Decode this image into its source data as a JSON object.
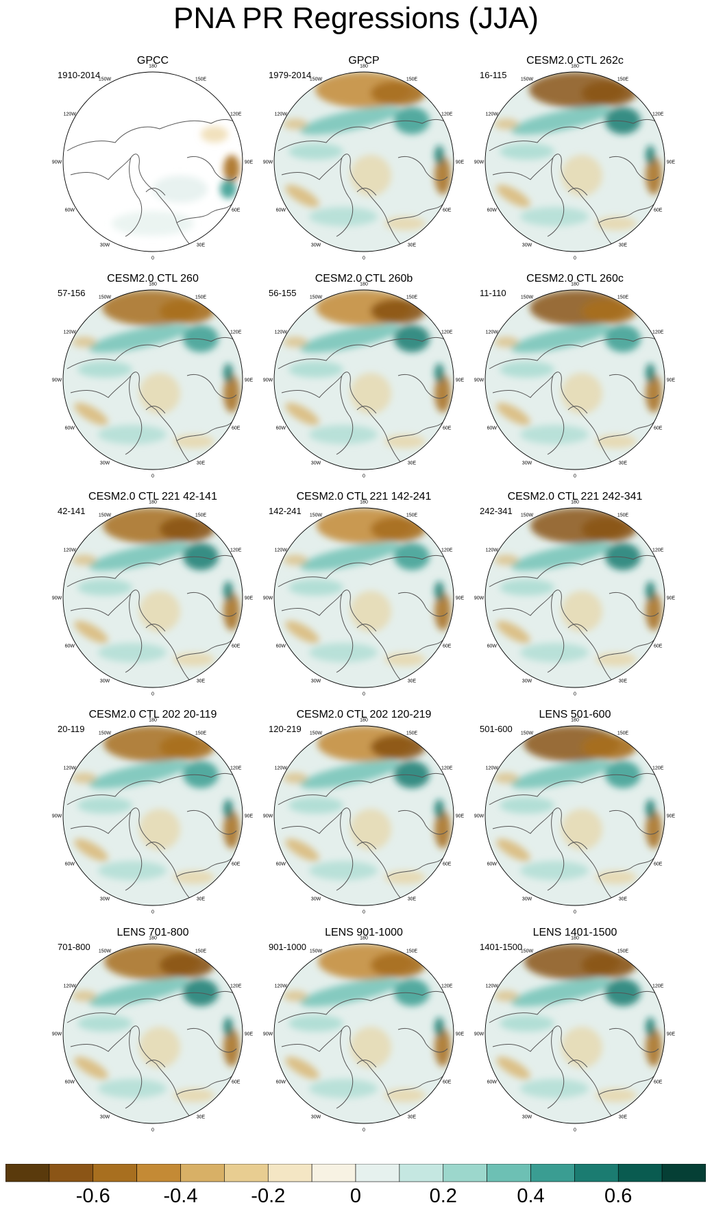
{
  "title": "PNA PR Regressions (JJA)",
  "panels": [
    {
      "title": "GPCC",
      "period": "1910-2014",
      "missing": true
    },
    {
      "title": "GPCP",
      "period": "1979-2014"
    },
    {
      "title": "CESM2.0 CTL 262c",
      "period": "16-115"
    },
    {
      "title": "CESM2.0 CTL 260",
      "period": "57-156"
    },
    {
      "title": "CESM2.0 CTL 260b",
      "period": "56-155"
    },
    {
      "title": "CESM2.0 CTL 260c",
      "period": "11-110"
    },
    {
      "title": "CESM2.0 CTL 221 42-141",
      "period": "42-141"
    },
    {
      "title": "CESM2.0 CTL 221 142-241",
      "period": "142-241"
    },
    {
      "title": "CESM2.0 CTL 221 242-341",
      "period": "242-341"
    },
    {
      "title": "CESM2.0 CTL 202 20-119",
      "period": "20-119"
    },
    {
      "title": "CESM2.0 CTL 202 120-219",
      "period": "120-219"
    },
    {
      "title": "LENS 501-600",
      "period": "501-600"
    },
    {
      "title": "LENS 701-800",
      "period": "701-800"
    },
    {
      "title": "LENS 901-1000",
      "period": "901-1000"
    },
    {
      "title": "LENS 1401-1500",
      "period": "1401-1500"
    }
  ],
  "longitude_labels": [
    "180",
    "150E",
    "120E",
    "90E",
    "60E",
    "30E",
    "0",
    "30W",
    "60W",
    "90W",
    "120W",
    "150W"
  ],
  "colorbar": {
    "colors": [
      "#5a3a0c",
      "#8b5516",
      "#a86f1f",
      "#c48a35",
      "#d8b066",
      "#e8cd91",
      "#f4e6c4",
      "#f7f2e3",
      "#e6f1ee",
      "#c5e7e1",
      "#9cd7cc",
      "#6dc0b4",
      "#3a9d92",
      "#1b7c71",
      "#095b50",
      "#053f35"
    ],
    "ticks": [
      {
        "value": -0.6,
        "label": "-0.6"
      },
      {
        "value": -0.4,
        "label": "-0.4"
      },
      {
        "value": -0.2,
        "label": "-0.2"
      },
      {
        "value": 0,
        "label": "0"
      },
      {
        "value": 0.2,
        "label": "0.2"
      },
      {
        "value": 0.4,
        "label": "0.4"
      },
      {
        "value": 0.6,
        "label": "0.6"
      }
    ],
    "range": [
      -0.8,
      0.8
    ]
  }
}
